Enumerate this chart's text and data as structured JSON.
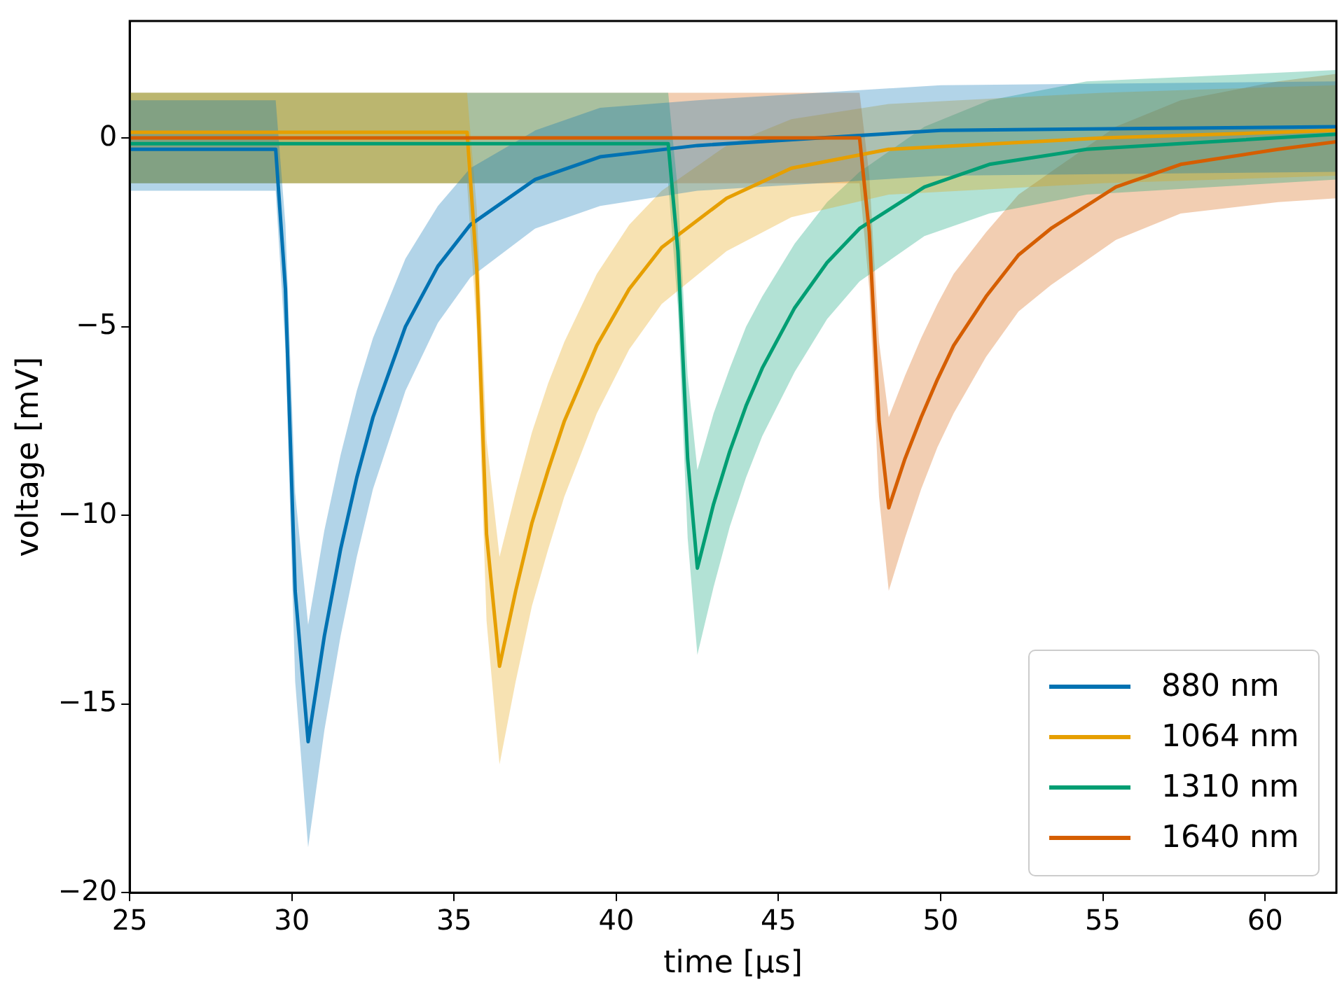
{
  "chart_data": {
    "type": "line",
    "xlabel": "time [μs]",
    "ylabel": "voltage [mV]",
    "xlim": [
      25,
      62.2
    ],
    "ylim": [
      -20,
      3.1
    ],
    "xticks": [
      25,
      30,
      35,
      40,
      45,
      50,
      55,
      60
    ],
    "yticks": [
      -20,
      -15,
      -10,
      -5,
      0
    ],
    "grid": false,
    "legend": "bottom right",
    "marker": "none",
    "line_style": "solid",
    "series": [
      {
        "name": "880 nm",
        "color": "#0072b2",
        "x": [
          25,
          29.5,
          29.8,
          30.1,
          30.5,
          31,
          31.5,
          32,
          32.5,
          33.5,
          34.5,
          35.5,
          37.5,
          39.5,
          42.5,
          50,
          62.2
        ],
        "values": [
          -0.3,
          -0.3,
          -4,
          -12,
          -16,
          -13.2,
          -10.9,
          -9.0,
          -7.4,
          -5.0,
          -3.4,
          -2.3,
          -1.1,
          -0.5,
          -0.2,
          0.2,
          0.3
        ],
        "lower": [
          -1.4,
          -1.4,
          -5.6,
          -14.4,
          -18.8,
          -15.7,
          -13.2,
          -11.1,
          -9.3,
          -6.7,
          -4.9,
          -3.7,
          -2.4,
          -1.8,
          -1.4,
          -1.0,
          -0.9
        ],
        "upper": [
          1.0,
          1.0,
          -2.3,
          -9.4,
          -12.9,
          -10.4,
          -8.4,
          -6.7,
          -5.3,
          -3.2,
          -1.8,
          -0.8,
          0.2,
          0.8,
          1.0,
          1.4,
          1.5
        ]
      },
      {
        "name": "1064 nm",
        "color": "#e69f00",
        "x": [
          25,
          35.4,
          35.7,
          36.0,
          36.4,
          36.9,
          37.4,
          37.9,
          38.4,
          39.4,
          40.4,
          41.4,
          43.4,
          45.4,
          48.4,
          55,
          62.2
        ],
        "values": [
          0.15,
          0.15,
          -3.5,
          -10.5,
          -14,
          -12.0,
          -10.2,
          -8.8,
          -7.5,
          -5.5,
          -4.0,
          -2.9,
          -1.6,
          -0.8,
          -0.3,
          0,
          0.2
        ],
        "lower": [
          -1.2,
          -1.2,
          -5.1,
          -12.8,
          -16.6,
          -14.4,
          -12.4,
          -10.9,
          -9.5,
          -7.3,
          -5.6,
          -4.4,
          -3.0,
          -2.1,
          -1.5,
          -1.2,
          -1.0
        ],
        "upper": [
          1.2,
          1.2,
          -1.9,
          -8.0,
          -11.1,
          -9.4,
          -7.8,
          -6.5,
          -5.4,
          -3.6,
          -2.3,
          -1.4,
          -0.2,
          0.5,
          0.9,
          1.2,
          1.4
        ]
      },
      {
        "name": "1310 nm",
        "color": "#009e73",
        "x": [
          25,
          41.6,
          41.9,
          42.2,
          42.5,
          43,
          43.5,
          44,
          44.5,
          45.5,
          46.5,
          47.5,
          49.5,
          51.5,
          54.5,
          62.2
        ],
        "values": [
          -0.15,
          -0.15,
          -3,
          -8.5,
          -11.4,
          -9.7,
          -8.3,
          -7.1,
          -6.1,
          -4.5,
          -3.3,
          -2.4,
          -1.3,
          -0.7,
          -0.3,
          0.1
        ],
        "lower": [
          -1.2,
          -1.2,
          -4.5,
          -10.6,
          -13.7,
          -11.9,
          -10.3,
          -9.0,
          -7.9,
          -6.2,
          -4.8,
          -3.8,
          -2.6,
          -2.0,
          -1.5,
          -1.1
        ],
        "upper": [
          1.2,
          1.2,
          -1.4,
          -6.3,
          -8.8,
          -7.3,
          -6.1,
          -5.0,
          -4.2,
          -2.8,
          -1.7,
          -0.9,
          0.3,
          1.0,
          1.5,
          1.8
        ]
      },
      {
        "name": "1640 nm",
        "color": "#d55e00",
        "x": [
          25,
          47.5,
          47.8,
          48.1,
          48.4,
          48.9,
          49.4,
          49.9,
          50.4,
          51.4,
          52.4,
          53.4,
          55.4,
          57.4,
          60.4,
          62.2
        ],
        "values": [
          0,
          0,
          -2.5,
          -7.5,
          -9.8,
          -8.5,
          -7.4,
          -6.4,
          -5.5,
          -4.2,
          -3.1,
          -2.4,
          -1.3,
          -0.7,
          -0.3,
          -0.1
        ],
        "lower": [
          -1.2,
          -1.2,
          -4.0,
          -9.5,
          -12.0,
          -10.6,
          -9.3,
          -8.2,
          -7.3,
          -5.8,
          -4.6,
          -3.9,
          -2.7,
          -2.0,
          -1.7,
          -1.6
        ],
        "upper": [
          1.2,
          1.2,
          -1.0,
          -5.4,
          -7.4,
          -6.3,
          -5.3,
          -4.4,
          -3.6,
          -2.5,
          -1.5,
          -0.9,
          0.3,
          1.0,
          1.5,
          1.7
        ]
      }
    ]
  }
}
